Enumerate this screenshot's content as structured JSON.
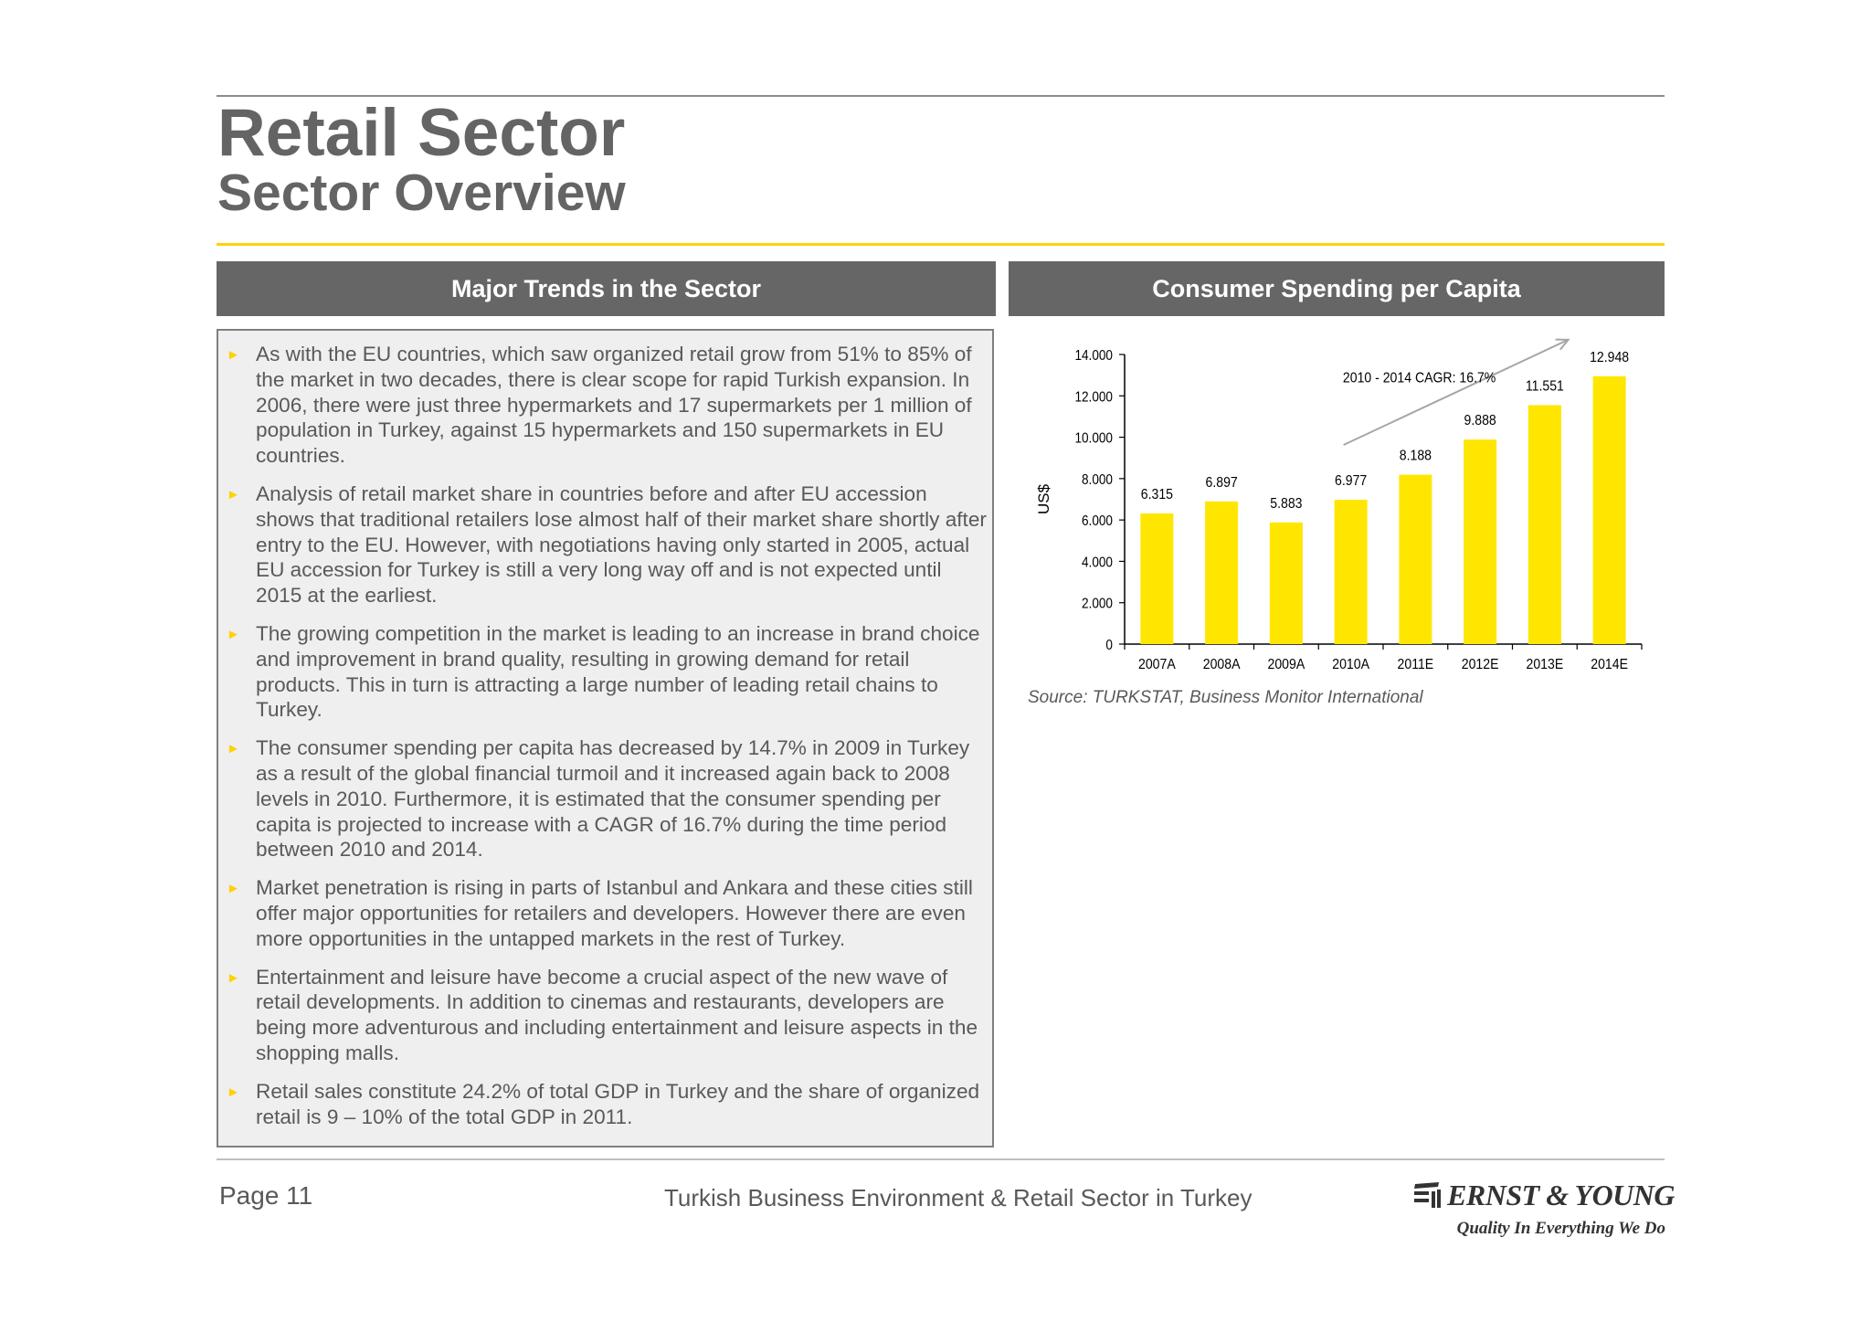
{
  "header": {
    "title": "Retail Sector",
    "subtitle": "Sector Overview"
  },
  "trends": {
    "heading": "Major Trends in the Sector",
    "bullet_marker": "►",
    "bullets": [
      "As with the EU countries, which saw organized retail grow from 51% to 85% of the market in two decades, there is clear scope for rapid Turkish expansion. In 2006, there were just three hypermarkets and 17 supermarkets per 1 million of population in Turkey, against 15 hypermarkets and 150 supermarkets in EU countries.",
      "Analysis of retail market share in countries before and after EU accession shows that traditional retailers lose almost half of their market share shortly after entry to the EU. However, with negotiations having only started in 2005, actual EU accession for Turkey is still a very long way off and is not expected until 2015 at the earliest.",
      "The growing competition in the market is leading to an increase in brand choice and improvement in brand quality, resulting in growing demand for retail products. This in turn is attracting a large number of leading retail chains to Turkey.",
      "The consumer spending per capita has decreased by 14.7% in 2009 in Turkey as a result of the global financial turmoil and it increased again back to 2008 levels in 2010. Furthermore, it is estimated that the consumer spending per capita is projected to increase with a CAGR of 16.7% during the time period between 2010 and 2014.",
      "Market penetration is rising in parts of Istanbul and Ankara and these cities still offer major opportunities for retailers and developers. However there are even more opportunities in the untapped markets in the rest of Turkey.",
      "Entertainment and leisure have become a crucial aspect of the new wave of retail developments. In addition to cinemas and restaurants, developers are being more adventurous and including entertainment and leisure aspects in the shopping malls.",
      "Retail sales constitute 24.2% of total GDP in Turkey and the share of organized retail is 9 – 10% of the total GDP in 2011."
    ]
  },
  "spending": {
    "heading": "Consumer Spending per Capita",
    "source": "Source: TURKSTAT, Business Monitor International"
  },
  "chart_data": {
    "type": "bar",
    "title": "",
    "xlabel": "",
    "ylabel": "US$",
    "categories": [
      "2007A",
      "2008A",
      "2009A",
      "2010A",
      "2011E",
      "2012E",
      "2013E",
      "2014E"
    ],
    "values": [
      6315,
      6897,
      5883,
      6977,
      8188,
      9888,
      11551,
      12948
    ],
    "value_labels": [
      "6.315",
      "6.897",
      "5.883",
      "6.977",
      "8.188",
      "9.888",
      "11.551",
      "12.948"
    ],
    "ylim": [
      0,
      14000
    ],
    "yticks": [
      0,
      2000,
      4000,
      6000,
      8000,
      10000,
      12000,
      14000
    ],
    "ytick_labels": [
      "0",
      "2.000",
      "4.000",
      "6.000",
      "8.000",
      "10.000",
      "12.000",
      "14.000"
    ],
    "grid": false,
    "legend": "none",
    "bar_color": "#ffe600",
    "annotation": {
      "text": "2010 - 2014 CAGR: 16.7%",
      "from_category": "2010A",
      "to_category": "2014E"
    }
  },
  "footer": {
    "page": "Page 11",
    "center": "Turkish Business Environment & Retail Sector in Turkey",
    "logo_name": "ERNST & YOUNG",
    "logo_tagline": "Quality In Everything We Do"
  },
  "colors": {
    "accent": "#ffd200",
    "header_bg": "#666666",
    "panel_bg": "#efeff0",
    "text": "#595959"
  }
}
